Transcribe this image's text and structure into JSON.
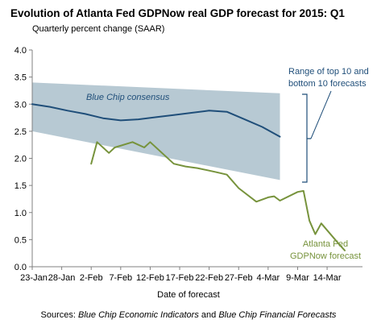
{
  "chart_data": {
    "type": "line",
    "title": "Evolution of Atlanta Fed GDPNow real GDP forecast for 2015: Q1",
    "subtitle": "Quarterly percent change (SAAR)",
    "xlabel": "Date of forecast",
    "ylim": [
      0,
      4
    ],
    "y_ticks": [
      "0.0",
      "0.5",
      "1.0",
      "1.5",
      "2.0",
      "2.5",
      "3.0",
      "3.5",
      "4.0"
    ],
    "x_ticks": [
      "23-Jan",
      "28-Jan",
      "2-Feb",
      "7-Feb",
      "12-Feb",
      "17-Feb",
      "22-Feb",
      "27-Feb",
      "4-Mar",
      "9-Mar",
      "14-Mar"
    ],
    "grid": false,
    "series": [
      {
        "name": "Blue Chip consensus",
        "color": "#1f4e79",
        "x": [
          "2015-01-23",
          "2015-01-26",
          "2015-01-29",
          "2015-02-01",
          "2015-02-04",
          "2015-02-07",
          "2015-02-10",
          "2015-02-13",
          "2015-02-16",
          "2015-02-19",
          "2015-02-22",
          "2015-02-25",
          "2015-02-28",
          "2015-03-03",
          "2015-03-06"
        ],
        "values": [
          3.0,
          2.95,
          2.88,
          2.82,
          2.74,
          2.7,
          2.72,
          2.76,
          2.8,
          2.84,
          2.88,
          2.86,
          2.72,
          2.58,
          2.4
        ]
      },
      {
        "name": "Atlanta Fed GDPNow forecast",
        "color": "#77933c",
        "x": [
          "2015-02-02",
          "2015-02-03",
          "2015-02-05",
          "2015-02-06",
          "2015-02-09",
          "2015-02-10",
          "2015-02-11",
          "2015-02-12",
          "2015-02-16",
          "2015-02-18",
          "2015-02-20",
          "2015-02-23",
          "2015-02-25",
          "2015-02-27",
          "2015-03-02",
          "2015-03-04",
          "2015-03-05",
          "2015-03-06",
          "2015-03-09",
          "2015-03-10",
          "2015-03-11",
          "2015-03-12",
          "2015-03-13",
          "2015-03-16",
          "2015-03-17"
        ],
        "values": [
          1.9,
          2.3,
          2.1,
          2.2,
          2.3,
          2.25,
          2.2,
          2.3,
          1.9,
          1.85,
          1.82,
          1.75,
          1.7,
          1.45,
          1.2,
          1.28,
          1.3,
          1.22,
          1.38,
          1.4,
          0.85,
          0.6,
          0.8,
          0.42,
          0.3
        ]
      }
    ],
    "band": {
      "name": "Range of top 10 and bottom 10 forecasts",
      "color": "#b7c9d3",
      "x": [
        "2015-01-23",
        "2015-03-06"
      ],
      "upper": [
        3.4,
        3.2
      ],
      "lower": [
        2.5,
        1.6
      ]
    },
    "annotations": {
      "blue_chip_label": "Blue Chip consensus",
      "range_label_line1": "Range of top 10 and",
      "range_label_line2": "bottom 10 forecasts",
      "gdpnow_label_line1": "Atlanta Fed",
      "gdpnow_label_line2": "GDPNow forecast"
    },
    "sources_prefix": "Sources:",
    "sources_source1": "Blue Chip Economic Indicators",
    "sources_and": "and",
    "sources_source2": "Blue Chip Financial Forecasts"
  }
}
